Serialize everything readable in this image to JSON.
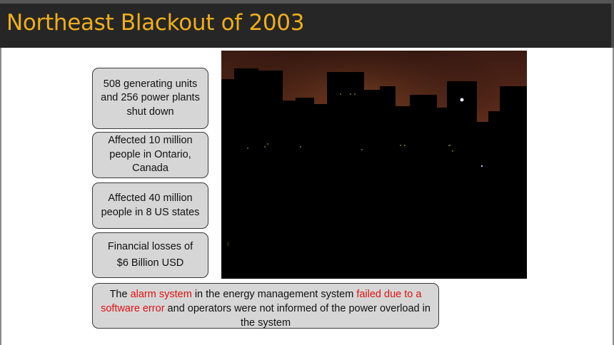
{
  "slide": {
    "title": "Northeast Blackout of 2003"
  },
  "facts": [
    {
      "text": "508 generating units and 256 power plants shut down"
    },
    {
      "text": "Affected 10 million people in Ontario, Canada"
    },
    {
      "text": "Affected 40 million people in 8 US states"
    },
    {
      "line1": "Financial losses of",
      "line2": "$6 Billion USD"
    }
  ],
  "cause": {
    "part1": "The ",
    "highlight1": "alarm system",
    "part2": " in the energy management system ",
    "highlight2": "failed due to a software error",
    "part3": " and operators were not informed of the power overload in the system"
  },
  "photo": {
    "subject": "dark city skyline at dusk during blackout"
  },
  "colors": {
    "title_bar": "#262626",
    "title_text": "#f0ae1a",
    "box_fill": "#d6d6d6",
    "highlight_red": "#e01010"
  }
}
